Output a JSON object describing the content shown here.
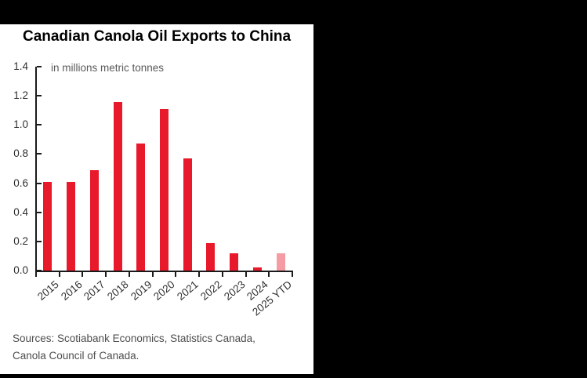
{
  "colors": {
    "background": "#000000",
    "panel": "#ffffff",
    "bar": "#e8192b",
    "bar_light": "#f49ba4",
    "axis": "#1a1a1a",
    "title_text": "#000000",
    "subtitle_text": "#595959",
    "tick_text": "#2e2e2e",
    "sources_text": "#4d4d4d"
  },
  "chart_data": {
    "type": "bar",
    "title": "Canadian Canola Oil Exports to China",
    "subtitle": "in millions metric tonnes",
    "categories": [
      "2015",
      "2016",
      "2017",
      "2018",
      "2019",
      "2020",
      "2021",
      "2022",
      "2023",
      "2024",
      "2025 YTD"
    ],
    "values": [
      0.61,
      0.61,
      0.69,
      1.16,
      0.87,
      1.11,
      0.77,
      0.19,
      0.12,
      0.02,
      0.12
    ],
    "highlight_last": true,
    "xlabel": "",
    "ylabel": "",
    "ylim": [
      0,
      1.4
    ],
    "ytick_labels": [
      "1.4",
      "1.2",
      "1.0",
      "0.8",
      "0.6",
      "0.4",
      "0.2",
      "0.0"
    ],
    "grid": false,
    "legend": "none",
    "xtick_rotation_deg": 40
  },
  "footer": {
    "sources_line1": "Sources: Scotiabank Economics, Statistics Canada,",
    "sources_line2": "Canola Council of Canada."
  }
}
